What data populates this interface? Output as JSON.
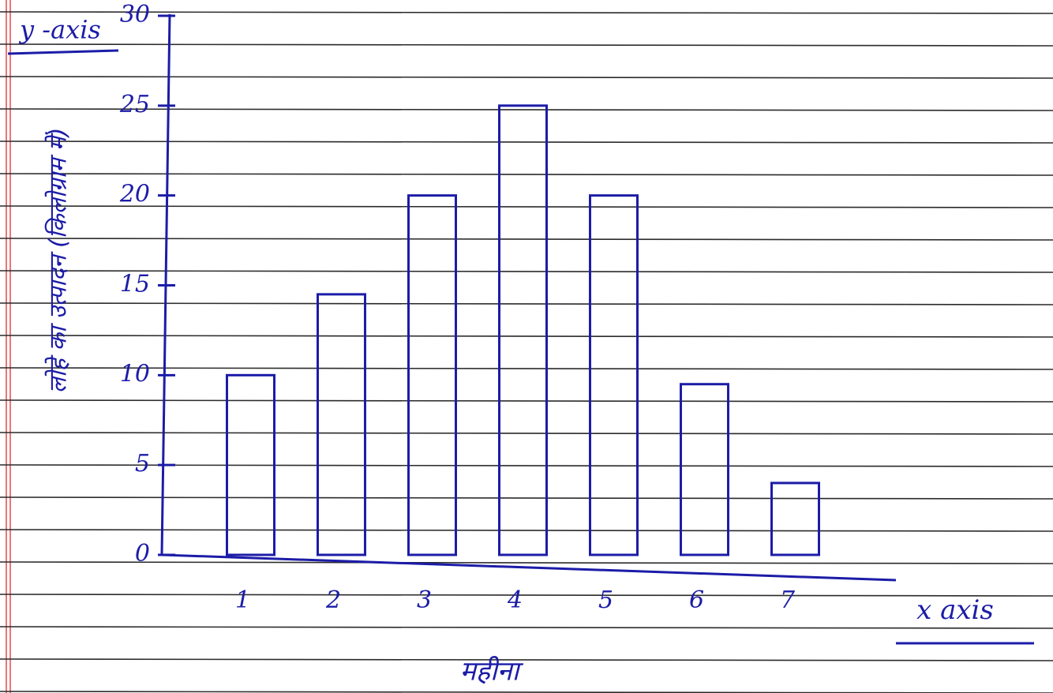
{
  "chart_data": {
    "type": "bar",
    "y_axis_label": "y -axis",
    "x_axis_label": "x axis",
    "ylabel": "लोहे का उत्पादन (किलोग्राम में)",
    "xlabel": "महीना",
    "categories": [
      "1",
      "2",
      "3",
      "4",
      "5",
      "6",
      "7"
    ],
    "values": [
      10,
      14.5,
      20,
      25,
      20,
      9.5,
      4
    ],
    "color": "#1c1ca8",
    "ylim": [
      0,
      30
    ],
    "yticks": [
      0,
      5,
      10,
      15,
      20,
      25,
      30
    ],
    "grid": false
  }
}
